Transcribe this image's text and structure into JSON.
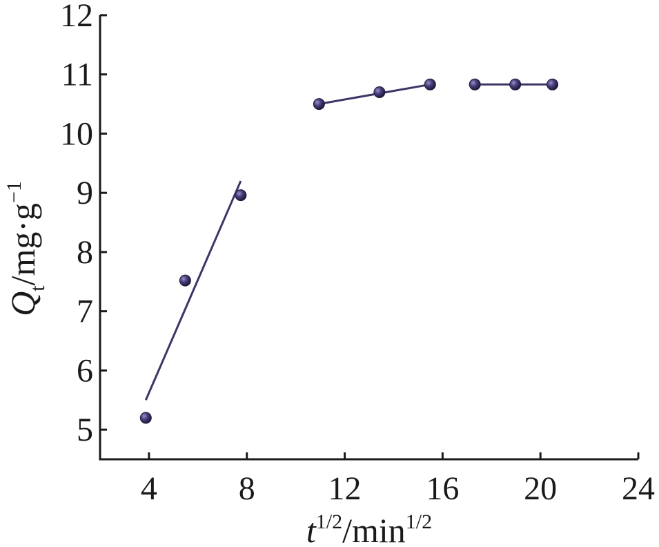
{
  "chart_data": {
    "type": "scatter",
    "title": "",
    "xlabel": {
      "var": "t",
      "var_sup": "1/2",
      "rest": "/min",
      "rest_sup": "1/2"
    },
    "ylabel": {
      "var": "Q",
      "var_sub": "t",
      "rest": "/mg·g",
      "rest_sup": "−1"
    },
    "xlim": [
      2,
      24
    ],
    "ylim": [
      4.5,
      12
    ],
    "xticks": [
      4,
      8,
      12,
      16,
      20,
      24
    ],
    "yticks": [
      5,
      6,
      7,
      8,
      9,
      10,
      11,
      12
    ],
    "grid": false,
    "colors": {
      "marker": "#3d3566",
      "line": "#3d3566",
      "axis": "#1a1a1a"
    },
    "points": [
      {
        "x": 3.87,
        "y": 5.2
      },
      {
        "x": 5.48,
        "y": 7.52
      },
      {
        "x": 7.75,
        "y": 8.96
      },
      {
        "x": 10.95,
        "y": 10.5
      },
      {
        "x": 13.42,
        "y": 10.7
      },
      {
        "x": 15.49,
        "y": 10.83
      },
      {
        "x": 17.32,
        "y": 10.83
      },
      {
        "x": 18.97,
        "y": 10.83
      },
      {
        "x": 20.49,
        "y": 10.83
      }
    ],
    "fit_lines": [
      {
        "x": [
          3.87,
          7.75
        ],
        "y": [
          5.5,
          9.2
        ]
      },
      {
        "x": [
          10.95,
          15.49
        ],
        "y": [
          10.5,
          10.83
        ]
      },
      {
        "x": [
          17.32,
          20.49
        ],
        "y": [
          10.83,
          10.83
        ]
      }
    ]
  }
}
